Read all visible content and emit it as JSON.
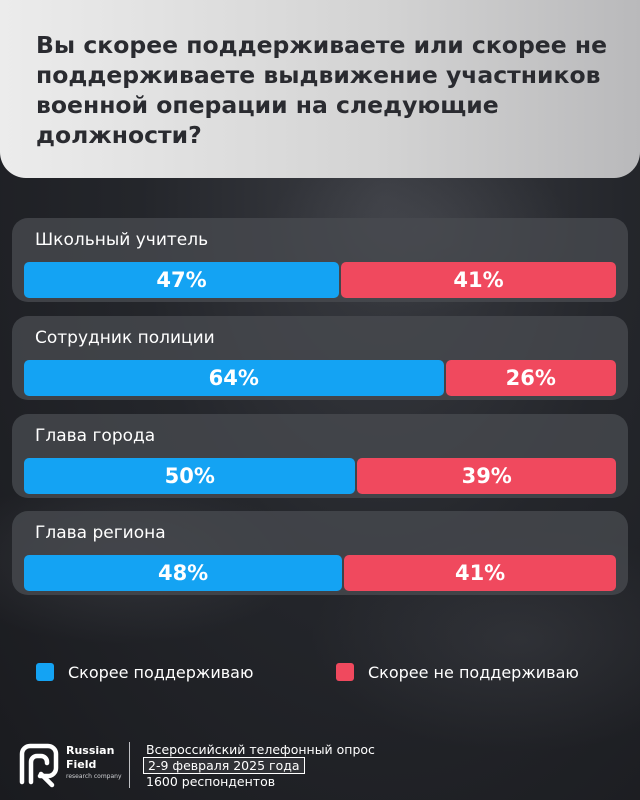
{
  "header": {
    "title": "Вы скорее поддерживаете или скорее не поддерживаете выдвижение участников военной операции на следующие должности?"
  },
  "colors": {
    "support": "#14a3f3",
    "oppose": "#f0495e"
  },
  "chart_data": {
    "type": "bar",
    "orientation": "horizontal-stacked",
    "categories": [
      "Школьный учитель",
      "Сотрудник полиции",
      "Глава города",
      "Глава региона"
    ],
    "series": [
      {
        "name": "Скорее поддерживаю",
        "values": [
          47,
          64,
          50,
          48
        ],
        "labels": [
          "47%",
          "64%",
          "50%",
          "48%"
        ]
      },
      {
        "name": "Скорее не поддерживаю",
        "values": [
          41,
          26,
          39,
          41
        ],
        "labels": [
          "41%",
          "26%",
          "39%",
          "41%"
        ]
      }
    ],
    "unit": "%",
    "legend_position": "bottom"
  },
  "legend": {
    "support_label": "Скорее поддерживаю",
    "oppose_label": "Скорее не поддерживаю"
  },
  "footer": {
    "logo_line1": "Russian",
    "logo_line2": "Field",
    "logo_sub": "research company",
    "survey_type": "Всероссийский телефонный опрос",
    "dates": "2-9 февраля 2025 года",
    "respondents": "1600 респондентов"
  }
}
